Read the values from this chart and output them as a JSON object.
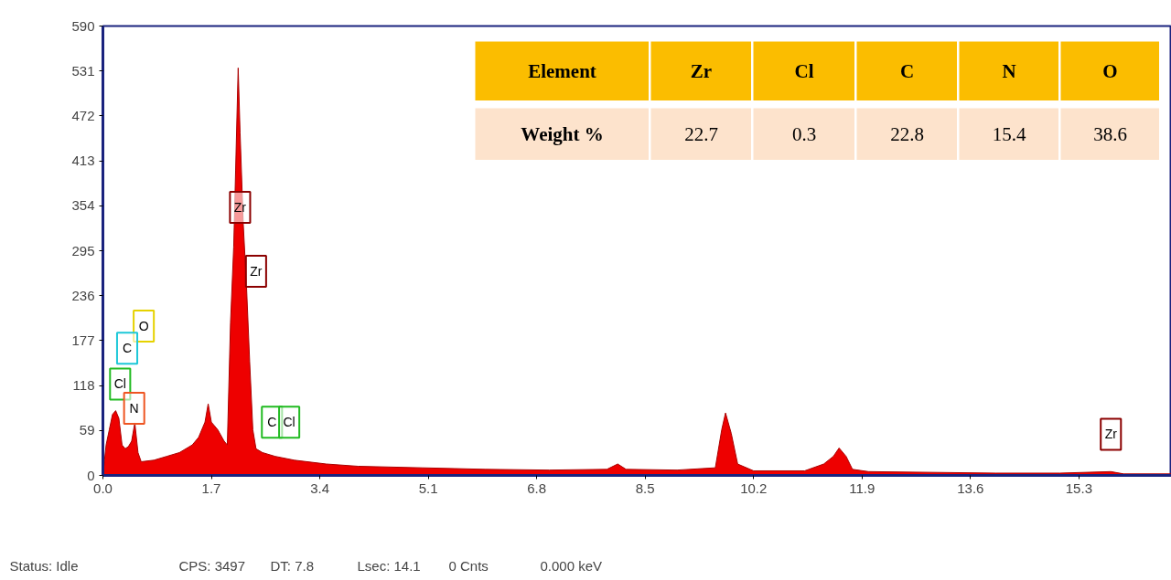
{
  "chart_data": [
    {
      "type": "area",
      "color": "#ee0000",
      "x": [
        0.0,
        0.05,
        0.1,
        0.15,
        0.2,
        0.25,
        0.3,
        0.35,
        0.4,
        0.45,
        0.5,
        0.55,
        0.6,
        0.8,
        1.0,
        1.2,
        1.4,
        1.5,
        1.6,
        1.65,
        1.7,
        1.8,
        1.9,
        1.95,
        2.0,
        2.05,
        2.08,
        2.12,
        2.15,
        2.2,
        2.25,
        2.3,
        2.35,
        2.4,
        2.5,
        2.7,
        3.0,
        3.5,
        4.0,
        5.0,
        6.0,
        7.0,
        7.9,
        8.07,
        8.2,
        9.0,
        9.6,
        9.7,
        9.76,
        9.85,
        9.95,
        10.2,
        11.0,
        11.3,
        11.45,
        11.54,
        11.65,
        11.75,
        12.0,
        13.0,
        14.0,
        15.0,
        15.8,
        16.0,
        16.75
      ],
      "values": [
        0,
        40,
        60,
        80,
        85,
        75,
        40,
        35,
        38,
        45,
        69,
        30,
        18,
        20,
        25,
        30,
        40,
        50,
        70,
        94,
        70,
        60,
        45,
        40,
        200,
        300,
        400,
        535,
        450,
        330,
        250,
        150,
        60,
        35,
        30,
        25,
        20,
        15,
        12,
        10,
        8,
        7,
        8,
        15,
        8,
        7,
        10,
        60,
        82,
        55,
        15,
        6,
        6,
        15,
        25,
        36,
        25,
        8,
        5,
        4,
        3,
        3,
        5,
        2,
        2
      ],
      "xlim": [
        0,
        16.75
      ],
      "ylim": [
        0,
        590
      ],
      "xticks": [
        {
          "value": 0,
          "label": "0.0"
        },
        1.7,
        3.4,
        5.1,
        6.8,
        8.5,
        10.2,
        11.9,
        13.6,
        15.3
      ],
      "yticks": [
        0,
        59,
        118,
        177,
        236,
        295,
        354,
        413,
        472,
        531,
        590
      ],
      "annotations": [
        {
          "text": "Zr",
          "x": 2.15,
          "y": 352
        },
        {
          "text": "Zr",
          "x": 2.4,
          "y": 268
        },
        {
          "text": "O",
          "x": 0.64,
          "y": 196
        },
        {
          "text": "C",
          "x": 0.38,
          "y": 167
        },
        {
          "text": "Cl",
          "x": 0.27,
          "y": 120
        },
        {
          "text": "N",
          "x": 0.49,
          "y": 88
        },
        {
          "text": "C",
          "x": 2.65,
          "y": 70
        },
        {
          "text": "Cl",
          "x": 2.92,
          "y": 70
        },
        {
          "text": "Zr",
          "x": 15.8,
          "y": 54
        },
        "Status: Idle",
        "CPS: 3497",
        "DT: 7.8",
        "Lsec: 14.1",
        "0 Cnts",
        "0.000 keV"
      ]
    },
    {
      "type": "other",
      "xlabel": "Element",
      "ylabel": "Weight %",
      "categories": [
        "Zr",
        "Cl",
        "C",
        "N",
        "O"
      ],
      "values": [
        22.7,
        0.3,
        22.8,
        15.4,
        38.6
      ],
      "data_labels": true
    }
  ]
}
